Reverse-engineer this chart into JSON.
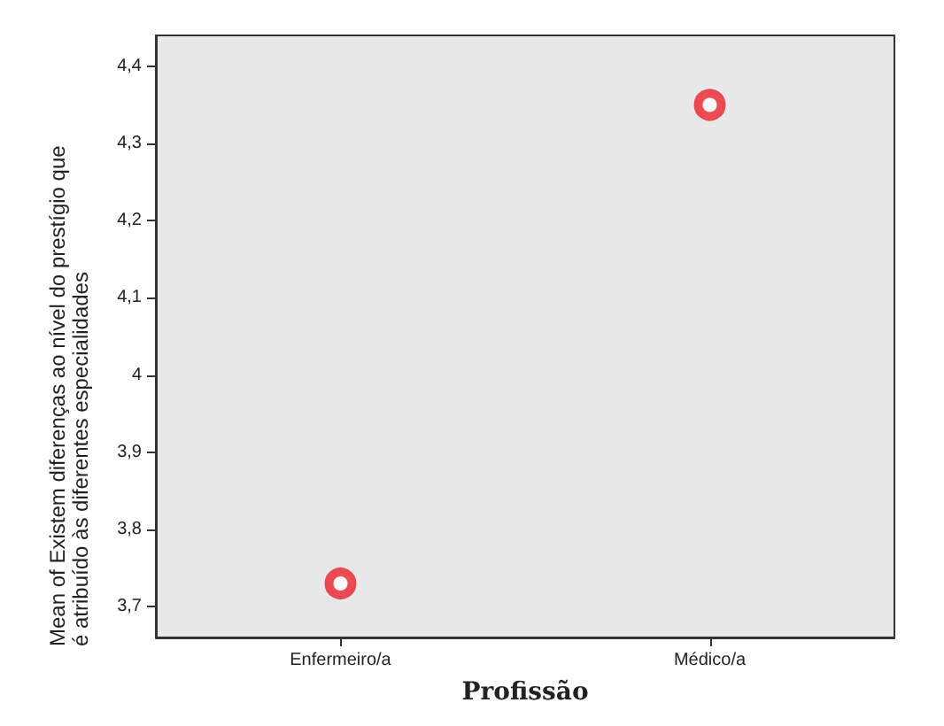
{
  "chart_data": {
    "type": "scatter",
    "xlabel": "Profissão",
    "ylabel": "Mean of Existem diferenças ao nível do prestígio que é atribuído às diferentes especialidades",
    "categories": [
      "Enfermeiro/a",
      "Médico/a"
    ],
    "series": [
      {
        "color": "#e8202a",
        "values": [
          3.73,
          4.35
        ]
      }
    ],
    "ylim": [
      3.66,
      4.44
    ],
    "yticks": [
      {
        "value": 3.7,
        "label": "3,7"
      },
      {
        "value": 3.8,
        "label": "3,8"
      },
      {
        "value": 3.9,
        "label": "3,9"
      },
      4,
      {
        "value": 4.1,
        "label": "4,1"
      },
      {
        "value": 4.2,
        "label": "4,2"
      },
      {
        "value": 4.3,
        "label": "4,3"
      },
      {
        "value": 4.4,
        "label": "4,4"
      }
    ],
    "grid": false,
    "marker": "circle"
  }
}
